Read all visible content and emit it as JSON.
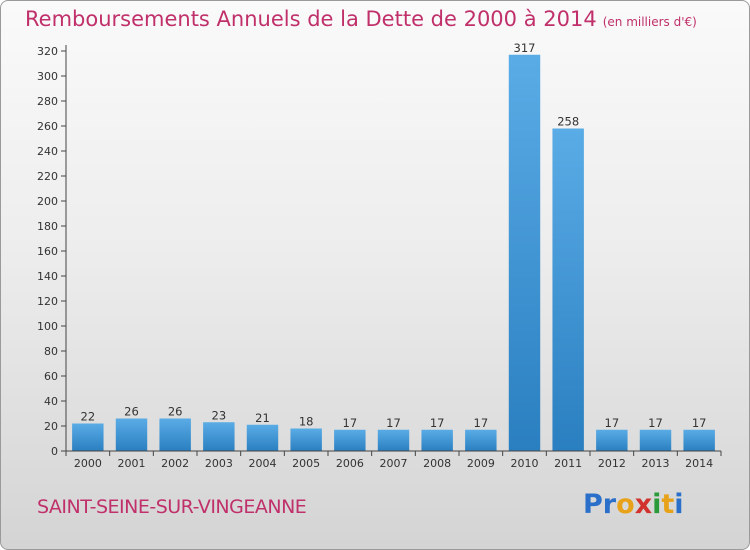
{
  "title": "Remboursements Annuels de la Dette de 2000 à 2014",
  "unit_note": "(en milliers d'€)",
  "city": "SAINT-SEINE-SUR-VINGEANNE",
  "logo": {
    "letters": [
      "P",
      "r",
      "o",
      "x",
      "i",
      "t",
      "i"
    ],
    "colors": [
      "#2a6fc9",
      "#2a6fc9",
      "#e8a21a",
      "#d2322d",
      "#2a9a3a",
      "#e8a21a",
      "#2a6fc9"
    ]
  },
  "colors": {
    "bar_light": "#5aace6",
    "bar_dark": "#2a7fc0",
    "title": "#c0306a"
  },
  "chart_data": {
    "type": "bar",
    "categories": [
      "2000",
      "2001",
      "2002",
      "2003",
      "2004",
      "2005",
      "2006",
      "2007",
      "2008",
      "2009",
      "2010",
      "2011",
      "2012",
      "2013",
      "2014"
    ],
    "values": [
      22,
      26,
      26,
      23,
      21,
      18,
      17,
      17,
      17,
      17,
      317,
      258,
      17,
      17,
      17
    ],
    "ylim": [
      0,
      320
    ],
    "yticks": [
      0,
      20,
      40,
      60,
      80,
      100,
      120,
      140,
      160,
      180,
      200,
      220,
      240,
      260,
      280,
      300,
      320
    ],
    "grid": false
  }
}
